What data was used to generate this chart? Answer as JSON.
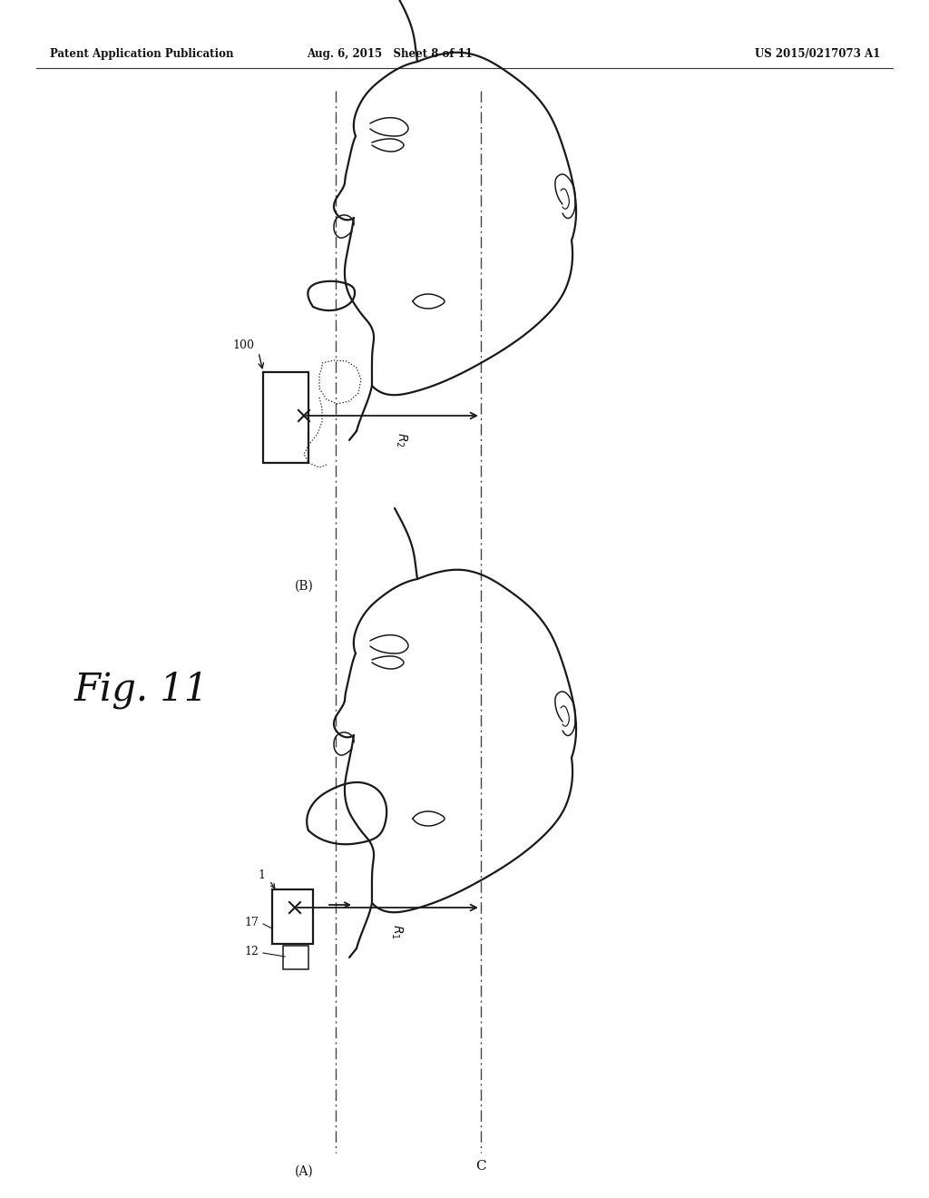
{
  "bg_color": "#ffffff",
  "header_left": "Patent Application Publication",
  "header_mid": "Aug. 6, 2015   Sheet 8 of 11",
  "header_right": "US 2015/0217073 A1",
  "fig_label": "Fig. 11",
  "label_A": "(A)",
  "label_B": "(B)",
  "label_C": "C",
  "ref_100": "100",
  "ref_1": "1",
  "ref_11": "17",
  "ref_12": "12",
  "ref_R1": "R1",
  "ref_R2": "R2",
  "line_color": "#1a1a1a",
  "lw_main": 1.6,
  "lw_thin": 1.1
}
